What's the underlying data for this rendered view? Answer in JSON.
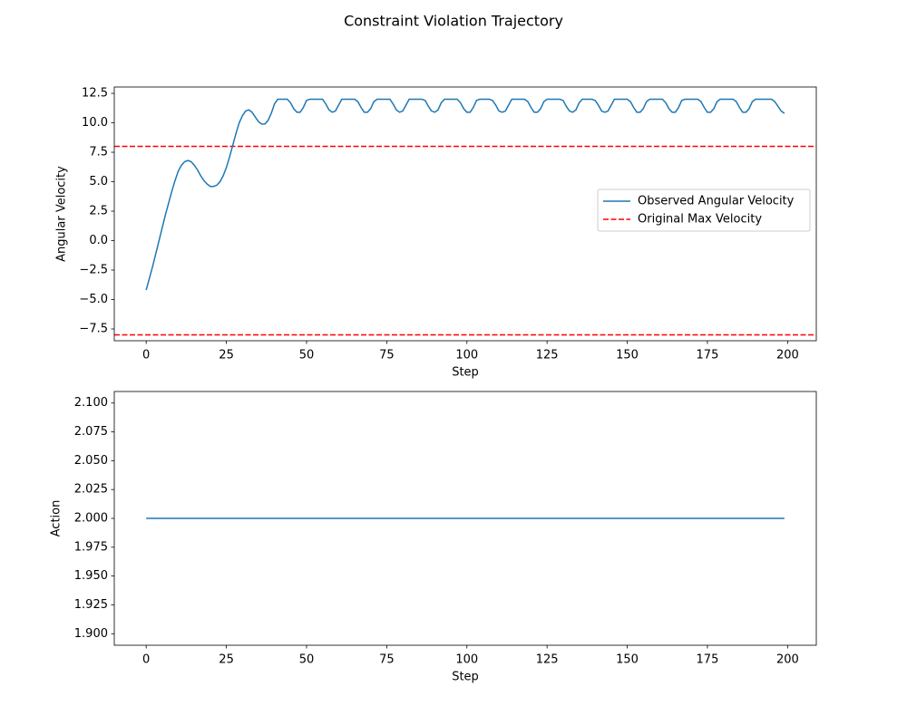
{
  "title": "Constraint Violation Trajectory",
  "chart_data": [
    {
      "type": "line",
      "xlabel": "Step",
      "ylabel": "Angular Velocity",
      "x": [
        0,
        1,
        2,
        3,
        4,
        5,
        6,
        7,
        8,
        9,
        10,
        11,
        12,
        13,
        14,
        15,
        16,
        17,
        18,
        19,
        20,
        21,
        22,
        23,
        24,
        25,
        26,
        27,
        28,
        29,
        30,
        31,
        32,
        33,
        34,
        35,
        36,
        37,
        38,
        39,
        40,
        41,
        42,
        43,
        44,
        45,
        46,
        47,
        48,
        49,
        50,
        51,
        52,
        53,
        54,
        55,
        56,
        57,
        58,
        59,
        60,
        61,
        62,
        63,
        64,
        65,
        66,
        67,
        68,
        69,
        70,
        71,
        72,
        73,
        74,
        75,
        76,
        77,
        78,
        79,
        80,
        81,
        82,
        83,
        84,
        85,
        86,
        87,
        88,
        89,
        90,
        91,
        92,
        93,
        94,
        95,
        96,
        97,
        98,
        99,
        100,
        101,
        102,
        103,
        104,
        105,
        106,
        107,
        108,
        109,
        110,
        111,
        112,
        113,
        114,
        115,
        116,
        117,
        118,
        119,
        120,
        121,
        122,
        123,
        124,
        125,
        126,
        127,
        128,
        129,
        130,
        131,
        132,
        133,
        134,
        135,
        136,
        137,
        138,
        139,
        140,
        141,
        142,
        143,
        144,
        145,
        146,
        147,
        148,
        149,
        150,
        151,
        152,
        153,
        154,
        155,
        156,
        157,
        158,
        159,
        160,
        161,
        162,
        163,
        164,
        165,
        166,
        167,
        168,
        169,
        170,
        171,
        172,
        173,
        174,
        175,
        176,
        177,
        178,
        179,
        180,
        181,
        182,
        183,
        184,
        185,
        186,
        187,
        188,
        189,
        190,
        191,
        192,
        193,
        194,
        195,
        196,
        197,
        198,
        199
      ],
      "series": [
        {
          "name": "Observed Angular Velocity",
          "color": "#1f77b4",
          "values": [
            -4.2,
            -3.2,
            -2.2,
            -1.1,
            0.0,
            1.1,
            2.2,
            3.2,
            4.2,
            5.1,
            5.9,
            6.4,
            6.7,
            6.8,
            6.7,
            6.4,
            6.0,
            5.5,
            5.1,
            4.8,
            4.6,
            4.6,
            4.7,
            5.0,
            5.5,
            6.2,
            7.1,
            8.1,
            9.1,
            10.0,
            10.6,
            11.0,
            11.1,
            10.9,
            10.5,
            10.1,
            9.9,
            9.9,
            10.2,
            10.8,
            11.6,
            12.0,
            12.0,
            12.0,
            12.0,
            11.7,
            11.2,
            10.9,
            10.9,
            11.3,
            11.9,
            12.0,
            12.0,
            12.0,
            12.0,
            12.0,
            11.6,
            11.1,
            10.9,
            11.0,
            11.5,
            12.0,
            12.0,
            12.0,
            12.0,
            12.0,
            11.8,
            11.3,
            10.9,
            10.9,
            11.2,
            11.8,
            12.0,
            12.0,
            12.0,
            12.0,
            12.0,
            11.6,
            11.1,
            10.9,
            11.0,
            11.5,
            12.0,
            12.0,
            12.0,
            12.0,
            12.0,
            11.9,
            11.4,
            11.0,
            10.9,
            11.1,
            11.7,
            12.0,
            12.0,
            12.0,
            12.0,
            12.0,
            11.7,
            11.2,
            10.9,
            10.9,
            11.3,
            11.9,
            12.0,
            12.0,
            12.0,
            12.0,
            11.9,
            11.5,
            11.0,
            10.9,
            11.0,
            11.5,
            12.0,
            12.0,
            12.0,
            12.0,
            12.0,
            11.8,
            11.3,
            10.9,
            10.9,
            11.2,
            11.8,
            12.0,
            12.0,
            12.0,
            12.0,
            12.0,
            11.9,
            11.4,
            11.0,
            10.9,
            11.1,
            11.7,
            12.0,
            12.0,
            12.0,
            12.0,
            11.9,
            11.5,
            11.0,
            10.9,
            11.0,
            11.5,
            12.0,
            12.0,
            12.0,
            12.0,
            12.0,
            11.8,
            11.3,
            10.9,
            10.9,
            11.2,
            11.8,
            12.0,
            12.0,
            12.0,
            12.0,
            12.0,
            11.7,
            11.2,
            10.9,
            10.9,
            11.3,
            11.9,
            12.0,
            12.0,
            12.0,
            12.0,
            12.0,
            11.8,
            11.3,
            10.9,
            10.9,
            11.2,
            11.8,
            12.0,
            12.0,
            12.0,
            12.0,
            12.0,
            11.8,
            11.3,
            10.9,
            10.9,
            11.2,
            11.8,
            12.0,
            12.0,
            12.0,
            12.0,
            12.0,
            12.0,
            11.8,
            11.4,
            11.0,
            10.8
          ]
        }
      ],
      "reference_lines": {
        "name": "Original Max Velocity",
        "color": "#ff0000",
        "style": "dashed",
        "values": [
          8,
          -8
        ]
      },
      "legend": "center right",
      "xlim": [
        -9.95,
        208.95
      ],
      "xticks": [
        0,
        25,
        50,
        75,
        100,
        125,
        150,
        175,
        200
      ],
      "ylim": [
        -8.5,
        13.04
      ],
      "yticks": [
        {
          "value": -7.5,
          "label": "−7.5"
        },
        {
          "value": -5,
          "label": "−5.0"
        },
        {
          "value": -2.5,
          "label": "−2.5"
        },
        {
          "value": 0,
          "label": "0.0"
        },
        2.5,
        {
          "value": 5,
          "label": "5.0"
        },
        7.5,
        {
          "value": 10,
          "label": "10.0"
        },
        12.5
      ]
    },
    {
      "type": "line",
      "xlabel": "Step",
      "ylabel": "Action",
      "x": [
        0,
        1,
        2,
        3,
        4,
        5,
        6,
        7,
        8,
        9,
        10,
        11,
        12,
        13,
        14,
        15,
        16,
        17,
        18,
        19,
        20,
        21,
        22,
        23,
        24,
        25,
        26,
        27,
        28,
        29,
        30,
        31,
        32,
        33,
        34,
        35,
        36,
        37,
        38,
        39,
        40,
        41,
        42,
        43,
        44,
        45,
        46,
        47,
        48,
        49,
        50,
        51,
        52,
        53,
        54,
        55,
        56,
        57,
        58,
        59,
        60,
        61,
        62,
        63,
        64,
        65,
        66,
        67,
        68,
        69,
        70,
        71,
        72,
        73,
        74,
        75,
        76,
        77,
        78,
        79,
        80,
        81,
        82,
        83,
        84,
        85,
        86,
        87,
        88,
        89,
        90,
        91,
        92,
        93,
        94,
        95,
        96,
        97,
        98,
        99,
        100,
        101,
        102,
        103,
        104,
        105,
        106,
        107,
        108,
        109,
        110,
        111,
        112,
        113,
        114,
        115,
        116,
        117,
        118,
        119,
        120,
        121,
        122,
        123,
        124,
        125,
        126,
        127,
        128,
        129,
        130,
        131,
        132,
        133,
        134,
        135,
        136,
        137,
        138,
        139,
        140,
        141,
        142,
        143,
        144,
        145,
        146,
        147,
        148,
        149,
        150,
        151,
        152,
        153,
        154,
        155,
        156,
        157,
        158,
        159,
        160,
        161,
        162,
        163,
        164,
        165,
        166,
        167,
        168,
        169,
        170,
        171,
        172,
        173,
        174,
        175,
        176,
        177,
        178,
        179,
        180,
        181,
        182,
        183,
        184,
        185,
        186,
        187,
        188,
        189,
        190,
        191,
        192,
        193,
        194,
        195,
        196,
        197,
        198,
        199
      ],
      "series": [
        {
          "color": "#1f77b4",
          "values": [
            2,
            2,
            2,
            2,
            2,
            2,
            2,
            2,
            2,
            2,
            2,
            2,
            2,
            2,
            2,
            2,
            2,
            2,
            2,
            2,
            2,
            2,
            2,
            2,
            2,
            2,
            2,
            2,
            2,
            2,
            2,
            2,
            2,
            2,
            2,
            2,
            2,
            2,
            2,
            2,
            2,
            2,
            2,
            2,
            2,
            2,
            2,
            2,
            2,
            2,
            2,
            2,
            2,
            2,
            2,
            2,
            2,
            2,
            2,
            2,
            2,
            2,
            2,
            2,
            2,
            2,
            2,
            2,
            2,
            2,
            2,
            2,
            2,
            2,
            2,
            2,
            2,
            2,
            2,
            2,
            2,
            2,
            2,
            2,
            2,
            2,
            2,
            2,
            2,
            2,
            2,
            2,
            2,
            2,
            2,
            2,
            2,
            2,
            2,
            2,
            2,
            2,
            2,
            2,
            2,
            2,
            2,
            2,
            2,
            2,
            2,
            2,
            2,
            2,
            2,
            2,
            2,
            2,
            2,
            2,
            2,
            2,
            2,
            2,
            2,
            2,
            2,
            2,
            2,
            2,
            2,
            2,
            2,
            2,
            2,
            2,
            2,
            2,
            2,
            2,
            2,
            2,
            2,
            2,
            2,
            2,
            2,
            2,
            2,
            2,
            2,
            2,
            2,
            2,
            2,
            2,
            2,
            2,
            2,
            2,
            2,
            2,
            2,
            2,
            2,
            2,
            2,
            2,
            2,
            2,
            2,
            2,
            2,
            2,
            2,
            2,
            2,
            2,
            2,
            2,
            2,
            2,
            2,
            2,
            2,
            2,
            2,
            2,
            2,
            2,
            2,
            2,
            2,
            2,
            2,
            2,
            2,
            2,
            2,
            2
          ]
        }
      ],
      "xlim": [
        -9.95,
        208.95
      ],
      "xticks": [
        0,
        25,
        50,
        75,
        100,
        125,
        150,
        175,
        200
      ],
      "ylim": [
        1.89,
        2.11
      ],
      "yticks": [
        {
          "value": 1.9,
          "label": "1.900"
        },
        {
          "value": 1.925,
          "label": "1.925"
        },
        {
          "value": 1.95,
          "label": "1.950"
        },
        {
          "value": 1.975,
          "label": "1.975"
        },
        {
          "value": 2.0,
          "label": "2.000"
        },
        {
          "value": 2.025,
          "label": "2.025"
        },
        {
          "value": 2.05,
          "label": "2.050"
        },
        {
          "value": 2.075,
          "label": "2.075"
        },
        {
          "value": 2.1,
          "label": "2.100"
        }
      ]
    }
  ]
}
